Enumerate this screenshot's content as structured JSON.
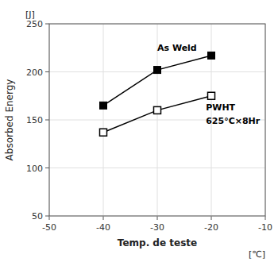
{
  "chart_data": {
    "type": "line",
    "xlabel": "Temp. de teste",
    "ylabel": "Absorbed Energy",
    "xlabel_unit": "[℃]",
    "ylabel_unit": "[J]",
    "x": [
      -40,
      -30,
      -20
    ],
    "series": [
      {
        "color": "#000000",
        "marker": "square-filled",
        "values": [
          165,
          202,
          217
        ]
      },
      {
        "color": "#000000",
        "marker": "square-open",
        "values": [
          137,
          160,
          175
        ]
      }
    ],
    "annotations": [
      {
        "text": "As Weld",
        "x": -30,
        "y": 224
      },
      {
        "text": "PWHT",
        "x": -21,
        "y": 162
      },
      {
        "text": "625°C×8Hr",
        "x": -21,
        "y": 148
      }
    ],
    "xlim": [
      -50,
      -10
    ],
    "ylim": [
      50,
      250
    ],
    "xticks": [
      -50,
      -40,
      -30,
      -20,
      -10
    ],
    "yticks": [
      50,
      100,
      150,
      200,
      250
    ],
    "grid": true
  }
}
